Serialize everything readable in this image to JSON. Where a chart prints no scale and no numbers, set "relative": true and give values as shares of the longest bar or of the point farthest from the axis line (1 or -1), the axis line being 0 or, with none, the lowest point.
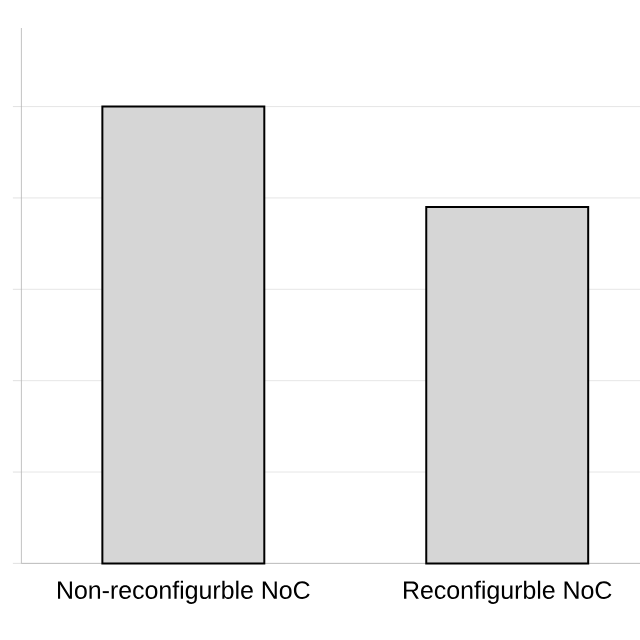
{
  "chart_data": {
    "type": "bar",
    "relative": true,
    "categories": [
      "Non-reconfigurble NoC",
      "Reconfigurble NoC"
    ],
    "values": [
      1,
      0.78
    ],
    "color": "#d6d6d6",
    "grid": "y"
  }
}
